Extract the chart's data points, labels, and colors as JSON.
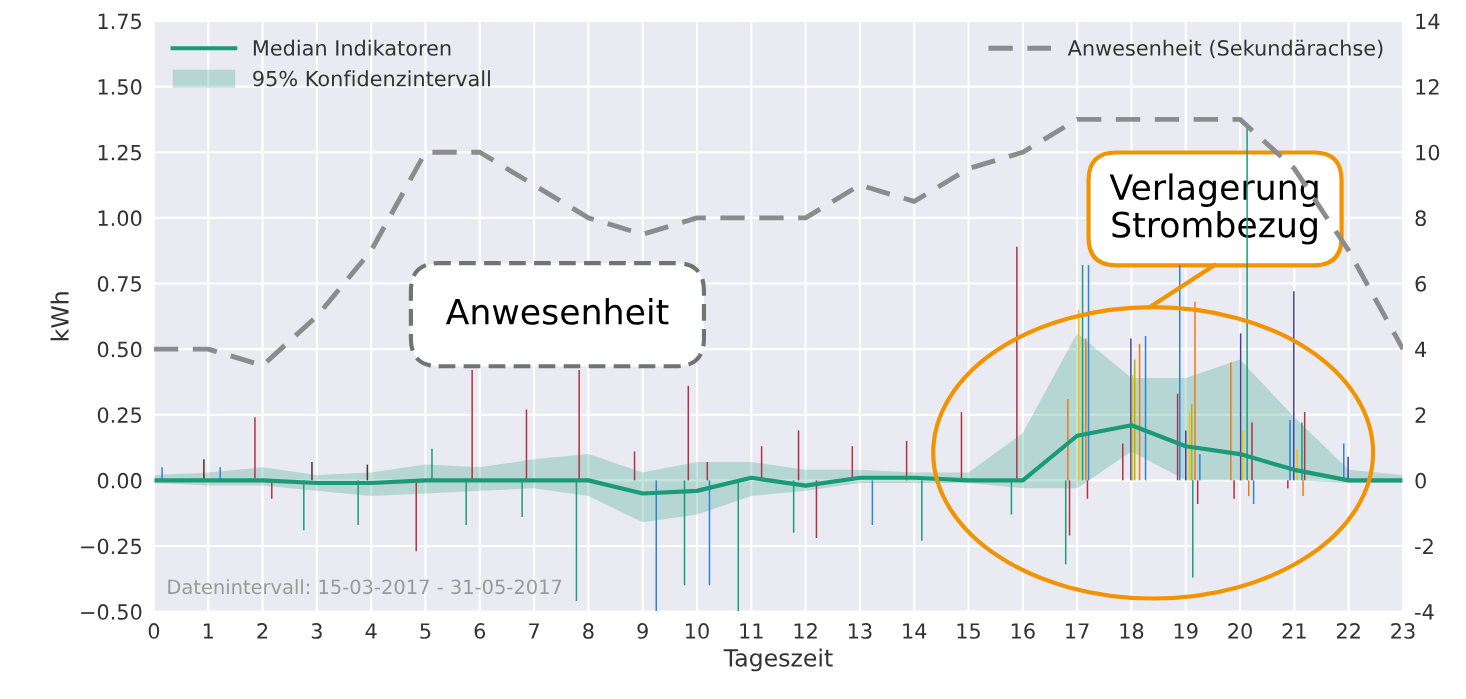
{
  "chart_data": {
    "type": "line",
    "xlabel": "Tageszeit",
    "ylabel": "kWh",
    "annotations": [
      "Datenintervall: 15-03-2017 - 31-05-2017",
      "Anwesenheit",
      "Verlagerung\nStrombezug",
      "95% Konfidenzintervall"
    ],
    "xlim": [
      0,
      23
    ],
    "xticks": [
      0,
      1,
      2,
      3,
      4,
      5,
      6,
      7,
      8,
      9,
      10,
      11,
      12,
      13,
      14,
      15,
      16,
      17,
      18,
      19,
      20,
      21,
      22,
      23
    ],
    "ylim": [
      -0.5,
      1.75
    ],
    "yticks": [
      {
        "value": -0.5,
        "label": "−0.50"
      },
      {
        "value": -0.25,
        "label": "−0.25"
      },
      {
        "value": 0,
        "label": "0.00"
      },
      {
        "value": 0.25,
        "label": "0.25"
      },
      {
        "value": 0.5,
        "label": "0.50"
      },
      {
        "value": 0.75,
        "label": "0.75"
      },
      {
        "value": 1.0,
        "label": "1.00"
      },
      {
        "value": 1.25,
        "label": "1.25"
      },
      {
        "value": 1.5,
        "label": "1.50"
      },
      {
        "value": 1.75,
        "label": "1.75"
      }
    ],
    "y2lim": [
      -4,
      14
    ],
    "y2ticks": [
      -4,
      -2,
      0,
      2,
      4,
      6,
      8,
      10,
      12,
      14
    ],
    "grid": true,
    "legend": "top",
    "series": [
      {
        "type": "bar",
        "x": [
          0.15,
          0.92,
          1.22,
          1.86,
          2.17,
          2.76,
          2.91,
          3.76,
          3.93,
          4.83,
          5.12,
          5.75,
          5.86,
          6.78,
          6.86,
          7.78,
          7.83,
          8.85,
          9.25,
          9.77,
          9.84,
          10.19,
          10.23,
          10.76,
          11.19,
          11.78,
          11.87,
          12.2,
          12.86,
          13.23,
          13.86,
          14.14,
          14.87,
          15.79,
          15.89,
          16.79,
          16.83,
          16.86,
          17.03,
          17.1,
          17.16,
          17.19,
          17.21,
          17.84,
          17.99,
          18.02,
          18.06,
          18.15,
          18.26,
          18.85,
          18.89,
          19.0,
          19.07,
          19.11,
          19.13,
          19.17,
          19.22,
          19.26,
          19.83,
          19.89,
          20.01,
          20.05,
          20.13,
          20.16,
          20.22,
          20.25,
          20.88,
          20.92,
          20.99,
          21.05,
          21.14,
          21.16,
          21.19,
          21.91,
          21.99
        ],
        "values": [
          0.05,
          0.08,
          0.05,
          0.24,
          -0.07,
          -0.19,
          0.07,
          -0.17,
          0.06,
          -0.27,
          0.12,
          -0.17,
          0.42,
          -0.14,
          0.27,
          -0.46,
          0.42,
          0.11,
          -0.5,
          -0.4,
          0.36,
          0.07,
          -0.4,
          -0.5,
          0.13,
          -0.2,
          0.19,
          -0.22,
          0.13,
          -0.17,
          0.15,
          -0.23,
          0.26,
          -0.13,
          0.89,
          -0.32,
          0.31,
          -0.21,
          0.65,
          0.82,
          0.54,
          -0.07,
          0.82,
          0.14,
          0.54,
          0.4,
          0.46,
          0.52,
          0.55,
          0.33,
          0.82,
          0.19,
          0.26,
          0.29,
          -0.37,
          0.68,
          -0.09,
          0.1,
          0.45,
          -0.07,
          0.56,
          0.19,
          1.35,
          -0.06,
          0.22,
          -0.09,
          -0.03,
          0.23,
          0.72,
          0.12,
          0.22,
          -0.06,
          0.26,
          0.14,
          0.09
        ],
        "colors": [
          "#2b86d9",
          "#4e3629",
          "#2b86d9",
          "#b5333f",
          "#b5333f",
          "#1a9f7a",
          "#4e3629",
          "#1a9f7a",
          "#4e3629",
          "#b5333f",
          "#1a9f7a",
          "#1a9f7a",
          "#b5333f",
          "#1a9f7a",
          "#b5333f",
          "#1a9f7a",
          "#b5333f",
          "#b5333f",
          "#2b86d9",
          "#1a9f7a",
          "#b5333f",
          "#b5333f",
          "#2b86d9",
          "#1a9f7a",
          "#b5333f",
          "#1a9f7a",
          "#b5333f",
          "#b5333f",
          "#b5333f",
          "#2b86d9",
          "#b5333f",
          "#1a9f7a",
          "#b5333f",
          "#1a9f7a",
          "#b5333f",
          "#1a9f7a",
          "#f07b16",
          "#b5333f",
          "#f4c20d",
          "#1a9f7a",
          "#f07b16",
          "#b5333f",
          "#2b86d9",
          "#b5333f",
          "#45409a",
          "#f4c20d",
          "#a6b81e",
          "#f07b16",
          "#2b86d9",
          "#b5333f",
          "#2b86d9",
          "#45409a",
          "#f4c20d",
          "#a6b81e",
          "#1a9f7a",
          "#f07b16",
          "#b5333f",
          "#2b86d9",
          "#f07b16",
          "#b5333f",
          "#45409a",
          "#f4c20d",
          "#1a9f7a",
          "#f07b16",
          "#b5333f",
          "#2b86d9",
          "#b5333f",
          "#2b86d9",
          "#45409a",
          "#f4c20d",
          "#1a9f7a",
          "#f07b16",
          "#b5333f",
          "#2b86d9",
          "#45409a"
        ]
      },
      {
        "name": "Median Indikatoren",
        "color": "#1a9a76",
        "x": [
          0,
          1,
          2,
          3,
          4,
          5,
          6,
          7,
          8,
          9,
          10,
          11,
          12,
          13,
          14,
          15,
          16,
          17,
          18,
          19,
          20,
          21,
          22,
          23
        ],
        "values": [
          0,
          0,
          0,
          -0.01,
          -0.01,
          0,
          0,
          0,
          0,
          -0.05,
          -0.04,
          0.01,
          -0.02,
          0.01,
          0.01,
          0,
          0,
          0.17,
          0.21,
          0.13,
          0.1,
          0.04,
          0,
          0
        ],
        "line_style": "solid",
        "lower": [
          -0.01,
          -0.02,
          -0.02,
          -0.04,
          -0.06,
          -0.05,
          -0.04,
          -0.03,
          -0.06,
          -0.16,
          -0.13,
          -0.06,
          -0.04,
          -0.01,
          -0.01,
          -0.01,
          -0.03,
          -0.03,
          0.11,
          0,
          0,
          0,
          -0.01,
          -0.01
        ],
        "upper": [
          0.02,
          0.03,
          0.05,
          0.02,
          0.03,
          0.06,
          0.05,
          0.08,
          0.1,
          0.03,
          0.07,
          0.07,
          0.04,
          0.04,
          0.03,
          0.03,
          0.18,
          0.56,
          0.39,
          0.39,
          0.46,
          0.24,
          0.04,
          0.02
        ]
      },
      {
        "name": "Anwesenheit (Sekundärachse)",
        "color": "#8c8c8c",
        "axis": "y2",
        "line_style": "dashed",
        "x": [
          0,
          1,
          2,
          3,
          4,
          5,
          6,
          7,
          8,
          9,
          10,
          11,
          12,
          13,
          14,
          15,
          16,
          17,
          18,
          19,
          20,
          21,
          22,
          23
        ],
        "values": [
          4,
          4,
          3.5,
          5,
          7,
          10,
          10,
          9,
          8,
          7.5,
          8,
          8,
          8,
          9,
          8.5,
          9.5,
          10,
          11,
          11,
          11,
          11,
          9.5,
          7,
          4
        ]
      }
    ]
  }
}
